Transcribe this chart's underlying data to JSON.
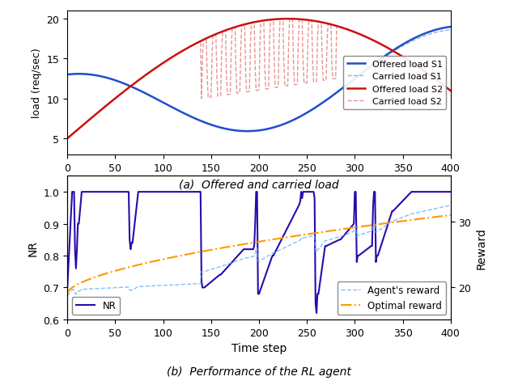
{
  "title_a": "(a)  Offered and carried load",
  "title_b": "(b)  Performance of the RL agent",
  "xlabel": "Time step",
  "ylabel_a": "load (req/sec)",
  "ylabel_b": "NR",
  "ylabel_b2": "Reward",
  "xlim": [
    0,
    400
  ],
  "ylim_a": [
    3,
    21
  ],
  "ylim_b": [
    0.6,
    1.05
  ],
  "ylim_b2": [
    15,
    37
  ],
  "xticks": [
    0,
    50,
    100,
    150,
    200,
    250,
    300,
    350,
    400
  ],
  "yticks_a": [
    5,
    10,
    15,
    20
  ],
  "yticks_b": [
    0.6,
    0.7,
    0.8,
    0.9,
    1.0
  ],
  "yticks_b2": [
    20,
    30
  ],
  "color_s1": "#1f4fcc",
  "color_s2": "#cc1111",
  "color_nr": "#2b0aab",
  "color_reward": "#55aaff",
  "color_opt": "#ff9900",
  "legend_loc_a": "center right",
  "legend_loc_b_left": "lower left",
  "legend_loc_b_right": "lower right"
}
